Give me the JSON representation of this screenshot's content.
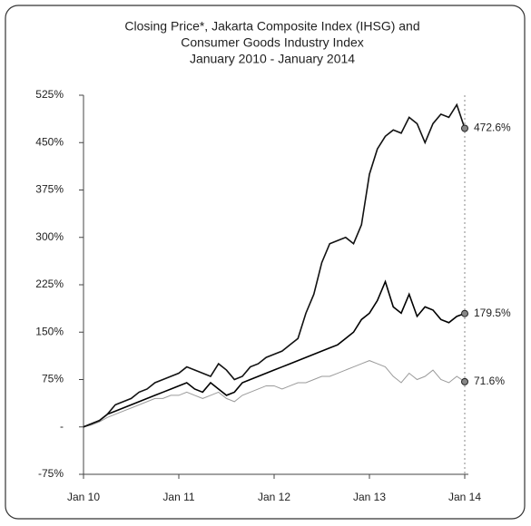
{
  "chart_data": {
    "type": "line",
    "title": [
      "Closing Price*, Jakarta Composite Index (IHSG) and",
      "Consumer Goods Industry Index"
    ],
    "subtitle": "January 2010 - January 2014",
    "x": [
      0,
      1,
      2,
      3,
      4,
      5,
      6,
      7,
      8,
      9,
      10,
      11,
      12,
      13,
      14,
      15,
      16,
      17,
      18,
      19,
      20,
      21,
      22,
      23,
      24,
      25,
      26,
      27,
      28,
      29,
      30,
      31,
      32,
      33,
      34,
      35,
      36,
      37,
      38,
      39,
      40,
      41,
      42,
      43,
      44,
      45,
      46,
      47,
      48
    ],
    "xlim": [
      0,
      48
    ],
    "xticks": [
      {
        "value": 0,
        "label": "Jan 10"
      },
      {
        "value": 12,
        "label": "Jan 11"
      },
      {
        "value": 24,
        "label": "Jan 12"
      },
      {
        "value": 36,
        "label": "Jan 13"
      },
      {
        "value": 48,
        "label": "Jan 14"
      }
    ],
    "ylim": [
      -75,
      525
    ],
    "yticks": [
      {
        "value": -75,
        "label": "-75%"
      },
      {
        "value": 0,
        "label": "-"
      },
      {
        "value": 75,
        "label": "75%"
      },
      {
        "value": 150,
        "label": "150%"
      },
      {
        "value": 225,
        "label": "225%"
      },
      {
        "value": 300,
        "label": "300%"
      },
      {
        "value": 375,
        "label": "375%"
      },
      {
        "value": 450,
        "label": "450%"
      },
      {
        "value": 525,
        "label": "525%"
      }
    ],
    "series": [
      {
        "color": "#111111",
        "values": [
          0,
          5,
          10,
          20,
          35,
          40,
          45,
          55,
          60,
          70,
          75,
          80,
          85,
          95,
          90,
          85,
          80,
          100,
          90,
          75,
          80,
          95,
          100,
          110,
          115,
          120,
          130,
          140,
          180,
          210,
          260,
          290,
          295,
          300,
          290,
          320,
          400,
          440,
          460,
          470,
          465,
          490,
          480,
          450,
          480,
          495,
          490,
          510,
          472.6
        ]
      },
      {
        "color": "#000000",
        "values": [
          0,
          5,
          10,
          20,
          25,
          30,
          35,
          40,
          45,
          50,
          55,
          60,
          65,
          70,
          60,
          55,
          70,
          60,
          50,
          55,
          70,
          75,
          80,
          85,
          90,
          95,
          100,
          105,
          110,
          115,
          120,
          125,
          130,
          140,
          150,
          170,
          180,
          200,
          230,
          190,
          180,
          210,
          175,
          190,
          185,
          170,
          165,
          175,
          179.5
        ]
      },
      {
        "color": "#9a9a9a",
        "values": [
          0,
          3,
          8,
          15,
          20,
          25,
          30,
          35,
          40,
          45,
          45,
          50,
          50,
          55,
          50,
          45,
          50,
          55,
          45,
          40,
          50,
          55,
          60,
          65,
          65,
          60,
          65,
          70,
          70,
          75,
          80,
          80,
          85,
          90,
          95,
          100,
          105,
          100,
          95,
          80,
          70,
          85,
          75,
          80,
          90,
          75,
          70,
          80,
          71.6
        ]
      }
    ],
    "annotations": [
      {
        "label": "472.6%",
        "value": 472.6
      },
      {
        "label": "179.5%",
        "value": 179.5
      },
      {
        "label": "71.6%",
        "value": 71.6
      }
    ]
  }
}
